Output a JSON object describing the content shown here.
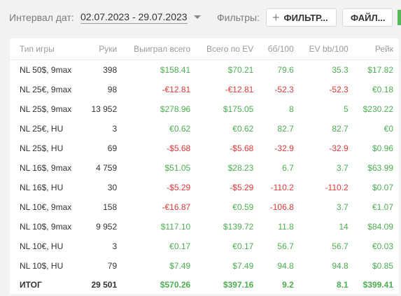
{
  "toolbar": {
    "date_label": "Интервал дат:",
    "date_range": "02.07.2023 - 29.07.2023",
    "filters_label": "Фильтры:",
    "filter_button": "ФИЛЬТР...",
    "file_button": "ФАЙЛ..."
  },
  "table": {
    "columns": [
      "Тип игры",
      "Руки",
      "Выиграл всего",
      "Всего по EV",
      "бб/100",
      "EV bb/100",
      "Рейк"
    ],
    "rows": [
      [
        "NL 50$, 9max",
        "398",
        "$158.41",
        "$70.21",
        "79.6",
        "35.3",
        "$17.82"
      ],
      [
        "NL 25€, 9max",
        "98",
        "-€12.81",
        "-€12.81",
        "-52.3",
        "-52.3",
        "€0.18"
      ],
      [
        "NL 25$, 9max",
        "13 952",
        "$278.96",
        "$175.05",
        "8",
        "5",
        "$230.22"
      ],
      [
        "NL 25€, HU",
        "3",
        "€0.62",
        "€0.62",
        "82.7",
        "82.7",
        "€0"
      ],
      [
        "NL 25$, HU",
        "69",
        "-$5.68",
        "-$5.68",
        "-32.9",
        "-32.9",
        "$0.96"
      ],
      [
        "NL 16$, 9max",
        "4 759",
        "$51.05",
        "$28.23",
        "6.7",
        "3.7",
        "$63.99"
      ],
      [
        "NL 16$, HU",
        "30",
        "-$5.29",
        "-$5.29",
        "-110.2",
        "-110.2",
        "$0.07"
      ],
      [
        "NL 10€, 9max",
        "158",
        "-€16.87",
        "€0.59",
        "-106.8",
        "3.7",
        "€1.07"
      ],
      [
        "NL 10$, 9max",
        "9 952",
        "$117.10",
        "$139.72",
        "11.8",
        "14",
        "$84.09"
      ],
      [
        "NL 10€, HU",
        "3",
        "€0.17",
        "€0.17",
        "56.7",
        "56.7",
        "€0.03"
      ],
      [
        "NL 10$, HU",
        "79",
        "$7.49",
        "$7.49",
        "94.8",
        "94.8",
        "$0.85"
      ]
    ],
    "total": [
      "ИТОГ",
      "29 501",
      "$570.26",
      "$397.16",
      "9.2",
      "8.1",
      "$399.41"
    ]
  },
  "colors": {
    "positive": "#4caf50",
    "negative": "#e53935",
    "accent": "#57b85a"
  }
}
